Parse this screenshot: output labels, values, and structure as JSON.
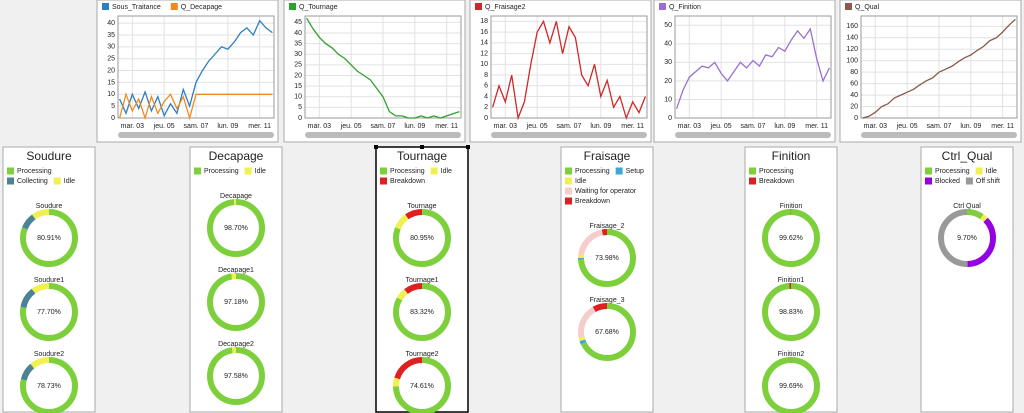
{
  "chart_data": [
    {
      "type": "line",
      "x": [
        2.2,
        2.6,
        3.0,
        3.4,
        3.8,
        4.2,
        4.6,
        5.0,
        5.4,
        5.8,
        6.2,
        6.6,
        7.0,
        7.4,
        7.8,
        8.2,
        8.6,
        9.0,
        9.4,
        9.8,
        10.2,
        10.6,
        11.0,
        11.4,
        11.8
      ],
      "xlim": [
        2.1,
        11.9
      ],
      "xticks": [
        {
          "value": 3,
          "label": "mar. 03"
        },
        {
          "value": 5,
          "label": "jeu. 05"
        },
        {
          "value": 7,
          "label": "sam. 07"
        },
        {
          "value": 9,
          "label": "lun. 09"
        },
        {
          "value": 11,
          "label": "mer. 11"
        }
      ],
      "ylim": [
        0,
        43
      ],
      "yticks": [
        0,
        5,
        10,
        15,
        20,
        25,
        30,
        35,
        40
      ],
      "grid": true,
      "series": [
        {
          "name": "Sous_Traitance",
          "color": "#2d7fc0",
          "values": [
            8,
            2,
            10,
            4,
            11,
            3,
            9,
            1,
            6,
            2,
            12,
            5,
            15,
            20,
            24,
            27,
            30,
            29,
            32,
            36,
            38,
            35,
            41,
            38,
            36
          ]
        },
        {
          "name": "Q_Decapage",
          "color": "#f08a20",
          "values": [
            0,
            10,
            3,
            8,
            0,
            9,
            2,
            7,
            10,
            4,
            9,
            0,
            10,
            10,
            10,
            10,
            10,
            10,
            10,
            10,
            10,
            10,
            10,
            10,
            10
          ]
        }
      ]
    },
    {
      "type": "line",
      "x": [
        2.2,
        2.6,
        3.0,
        3.4,
        3.8,
        4.2,
        4.6,
        5.0,
        5.4,
        5.8,
        6.2,
        6.6,
        7.0,
        7.4,
        7.8,
        8.2,
        8.6,
        9.0,
        9.4,
        9.8,
        10.2,
        10.6,
        11.0,
        11.4,
        11.8
      ],
      "xlim": [
        2.1,
        11.9
      ],
      "xticks": [
        {
          "value": 3,
          "label": "mar. 03"
        },
        {
          "value": 5,
          "label": "jeu. 05"
        },
        {
          "value": 7,
          "label": "sam. 07"
        },
        {
          "value": 9,
          "label": "lun. 09"
        },
        {
          "value": 11,
          "label": "mer. 11"
        }
      ],
      "ylim": [
        0,
        48
      ],
      "yticks": [
        0,
        5,
        10,
        15,
        20,
        25,
        30,
        35,
        40,
        45
      ],
      "grid": true,
      "series": [
        {
          "name": "Q_Tournage",
          "color": "#2ea02c",
          "values": [
            47,
            42,
            38,
            35,
            33,
            30,
            28,
            25,
            22,
            20,
            18,
            14,
            10,
            3,
            1,
            1,
            0,
            0,
            1,
            0,
            1,
            0,
            1,
            2,
            3
          ]
        }
      ]
    },
    {
      "type": "line",
      "x": [
        2.2,
        2.6,
        3.0,
        3.4,
        3.8,
        4.2,
        4.6,
        5.0,
        5.4,
        5.8,
        6.2,
        6.6,
        7.0,
        7.4,
        7.8,
        8.2,
        8.6,
        9.0,
        9.4,
        9.8,
        10.2,
        10.6,
        11.0,
        11.4,
        11.8
      ],
      "xlim": [
        2.1,
        11.9
      ],
      "xticks": [
        {
          "value": 3,
          "label": "mar. 03"
        },
        {
          "value": 5,
          "label": "jeu. 05"
        },
        {
          "value": 7,
          "label": "sam. 07"
        },
        {
          "value": 9,
          "label": "lun. 09"
        },
        {
          "value": 11,
          "label": "mer. 11"
        }
      ],
      "ylim": [
        0,
        19
      ],
      "yticks": [
        0,
        2,
        4,
        6,
        8,
        10,
        12,
        14,
        16,
        18
      ],
      "grid": true,
      "series": [
        {
          "name": "Q_Fraisage2",
          "color": "#d02828",
          "values": [
            2,
            6,
            3,
            8,
            0,
            3,
            10,
            16,
            18,
            14,
            18,
            12,
            17,
            15,
            8,
            6,
            10,
            4,
            7,
            2,
            4,
            0,
            3,
            1,
            4
          ]
        }
      ]
    },
    {
      "type": "line",
      "x": [
        2.2,
        2.6,
        3.0,
        3.4,
        3.8,
        4.2,
        4.6,
        5.0,
        5.4,
        5.8,
        6.2,
        6.6,
        7.0,
        7.4,
        7.8,
        8.2,
        8.6,
        9.0,
        9.4,
        9.8,
        10.2,
        10.6,
        11.0,
        11.4,
        11.8
      ],
      "xlim": [
        2.1,
        11.9
      ],
      "xticks": [
        {
          "value": 3,
          "label": "mar. 03"
        },
        {
          "value": 5,
          "label": "jeu. 05"
        },
        {
          "value": 7,
          "label": "sam. 07"
        },
        {
          "value": 9,
          "label": "lun. 09"
        },
        {
          "value": 11,
          "label": "mer. 11"
        }
      ],
      "ylim": [
        0,
        55
      ],
      "yticks": [
        0,
        10,
        20,
        30,
        40,
        50
      ],
      "grid": true,
      "series": [
        {
          "name": "Q_Finition",
          "color": "#9a6fcf",
          "values": [
            5,
            15,
            22,
            25,
            28,
            27,
            30,
            24,
            20,
            25,
            30,
            27,
            31,
            28,
            34,
            33,
            38,
            36,
            42,
            47,
            43,
            48,
            32,
            20,
            27
          ]
        }
      ]
    },
    {
      "type": "line",
      "x": [
        2.2,
        2.6,
        3.0,
        3.4,
        3.8,
        4.2,
        4.6,
        5.0,
        5.4,
        5.8,
        6.2,
        6.6,
        7.0,
        7.4,
        7.8,
        8.2,
        8.6,
        9.0,
        9.4,
        9.8,
        10.2,
        10.6,
        11.0,
        11.4,
        11.8
      ],
      "xlim": [
        2.1,
        11.9
      ],
      "xticks": [
        {
          "value": 3,
          "label": "mar. 03"
        },
        {
          "value": 5,
          "label": "jeu. 05"
        },
        {
          "value": 7,
          "label": "sam. 07"
        },
        {
          "value": 9,
          "label": "lun. 09"
        },
        {
          "value": 11,
          "label": "mer. 11"
        }
      ],
      "ylim": [
        0,
        178
      ],
      "yticks": [
        0,
        20,
        40,
        60,
        80,
        100,
        120,
        140,
        160
      ],
      "grid": true,
      "series": [
        {
          "name": "Q_Qual",
          "color": "#8b5a4a",
          "values": [
            0,
            3,
            10,
            20,
            25,
            35,
            40,
            45,
            50,
            58,
            65,
            70,
            80,
            85,
            90,
            98,
            105,
            110,
            118,
            125,
            135,
            140,
            150,
            162,
            172
          ]
        }
      ]
    },
    {
      "type": "pie",
      "title": "Soudure",
      "categories": [
        "Processing",
        "Collecting",
        "Idle"
      ],
      "colors": [
        "#7dcf3c",
        "#4a8296",
        "#f0f050"
      ],
      "pies": [
        {
          "name": "Soudure",
          "values": [
            80.91,
            9,
            10.09
          ],
          "center_label": "80.91%"
        },
        {
          "name": "Soudure1",
          "values": [
            77.7,
            12,
            10.3
          ],
          "center_label": "77.70%"
        },
        {
          "name": "Soudure2",
          "values": [
            78.73,
            10,
            11.27
          ],
          "center_label": "78.73%"
        }
      ]
    },
    {
      "type": "pie",
      "title": "Decapage",
      "categories": [
        "Processing",
        "Idle"
      ],
      "colors": [
        "#7dcf3c",
        "#f0f050"
      ],
      "pies": [
        {
          "name": "Decapage",
          "values": [
            98.7,
            1.3
          ],
          "center_label": "98.70%"
        },
        {
          "name": "Decapage1",
          "values": [
            97.18,
            2.82
          ],
          "center_label": "97.18%"
        },
        {
          "name": "Decapage2",
          "values": [
            97.58,
            2.42
          ],
          "center_label": "97.58%"
        }
      ]
    },
    {
      "type": "pie",
      "title": "Tournage",
      "selected": true,
      "categories": [
        "Processing",
        "Idle",
        "Breakdown"
      ],
      "colors": [
        "#7dcf3c",
        "#f0f050",
        "#e02020"
      ],
      "pies": [
        {
          "name": "Tournage",
          "values": [
            80.95,
            9,
            10.05
          ],
          "center_label": "80.95%"
        },
        {
          "name": "Tournage1",
          "values": [
            83.32,
            6,
            10.68
          ],
          "center_label": "83.32%"
        },
        {
          "name": "Tournage2",
          "values": [
            74.61,
            5,
            20.39
          ],
          "center_label": "74.61%"
        }
      ]
    },
    {
      "type": "pie",
      "title": "Fraisage",
      "categories": [
        "Processing",
        "Setup",
        "Idle",
        "Waiting for operator",
        "Breakdown"
      ],
      "colors": [
        "#7dcf3c",
        "#3ba8d8",
        "#f0f050",
        "#f7cccc",
        "#e02020"
      ],
      "pies": [
        {
          "name": "Fraisage_2",
          "values": [
            73.98,
            1,
            2,
            20,
            3.02
          ],
          "center_label": "73.98%"
        },
        {
          "name": "Fraisage_3",
          "values": [
            67.68,
            2,
            2,
            20,
            8.32
          ],
          "center_label": "67.68%"
        }
      ]
    },
    {
      "type": "pie",
      "title": "Finition",
      "categories": [
        "Processing",
        "Breakdown"
      ],
      "colors": [
        "#7dcf3c",
        "#e02020"
      ],
      "pies": [
        {
          "name": "Finition",
          "values": [
            99.62,
            0.38
          ],
          "center_label": "99.62%"
        },
        {
          "name": "Finition1",
          "values": [
            98.83,
            1.17
          ],
          "center_label": "98.83%"
        },
        {
          "name": "Finition2",
          "values": [
            99.69,
            0.31
          ],
          "center_label": "99.69%"
        }
      ]
    },
    {
      "type": "pie",
      "title": "Ctrl_Qual",
      "categories": [
        "Processing",
        "Idle",
        "Blocked",
        "Off shift"
      ],
      "colors": [
        "#7dcf3c",
        "#f0f050",
        "#9400e0",
        "#999999"
      ],
      "pies": [
        {
          "name": "Ctrl Qual",
          "values": [
            9.7,
            3,
            37,
            50.3
          ],
          "center_label": "9.70%"
        }
      ]
    }
  ]
}
